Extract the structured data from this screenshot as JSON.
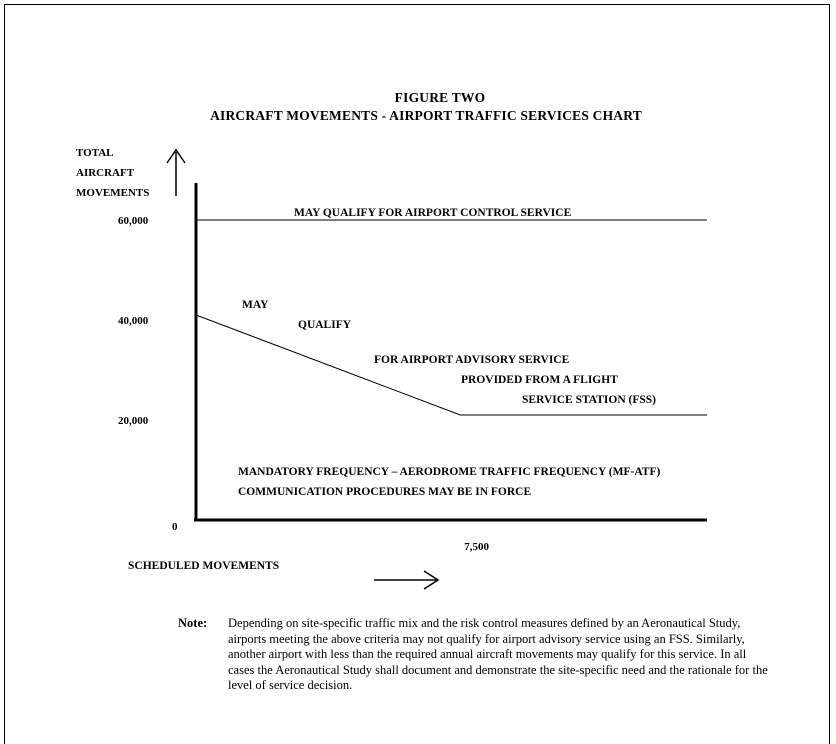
{
  "title": {
    "line1": "FIGURE TWO",
    "line2": "AIRCRAFT MOVEMENTS - AIRPORT TRAFFIC SERVICES CHART"
  },
  "chart_data": {
    "type": "line",
    "ylabel": [
      "TOTAL",
      "AIRCRAFT",
      "MOVEMENTS"
    ],
    "xlabel": "SCHEDULED MOVEMENTS",
    "y_ticks": [
      "60,000",
      "40,000",
      "20,000",
      "0"
    ],
    "y_tick_values": [
      60000,
      40000,
      20000,
      0
    ],
    "x_ticks": [
      "7,500"
    ],
    "x_tick_values": [
      7500
    ],
    "ylim": [
      0,
      80000
    ],
    "xlim": [
      0,
      14500
    ],
    "grid": false,
    "series": [
      {
        "x": [
          0,
          14500
        ],
        "y": [
          60000,
          60000
        ]
      },
      {
        "x": [
          0,
          7500,
          14500
        ],
        "y": [
          41000,
          21000,
          21000
        ]
      }
    ],
    "annotations": [
      "MAY QUALIFY FOR AIRPORT CONTROL SERVICE",
      "MAY",
      "QUALIFY",
      "FOR AIRPORT ADVISORY SERVICE",
      "PROVIDED FROM A FLIGHT",
      "SERVICE STATION (FSS)",
      "MANDATORY FREQUENCY – AERODROME TRAFFIC FREQUENCY (MF-ATF)",
      "COMMUNICATION PROCEDURES MAY BE IN FORCE"
    ]
  },
  "note": {
    "label": "Note:",
    "text": "Depending on site-specific traffic mix and the risk control measures defined by an Aeronautical Study, airports meeting the above criteria may not qualify for airport advisory service using an FSS.  Similarly, another airport with less than the required annual aircraft movements may qualify for this service.  In all cases the Aeronautical Study shall document and demonstrate the site-specific need and the rationale for the level of service decision."
  }
}
